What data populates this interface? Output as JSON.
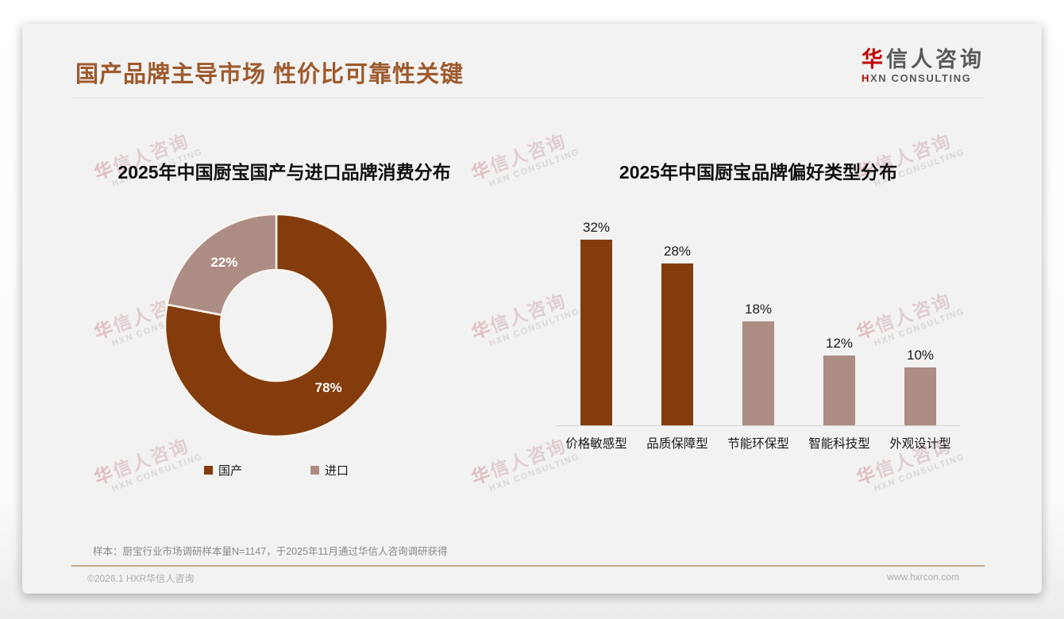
{
  "page": {
    "title": "国产品牌主导市场 性价比可靠性关键",
    "sample_note": "样本：厨宝行业市场调研样本量N=1147，于2025年11月通过华信人咨询调研获得",
    "footer_left": "©2026.1 HXR华信人咨询",
    "footer_right": "www.hxrcon.com"
  },
  "logo": {
    "cn_first": "华",
    "cn_rest": "信人咨询",
    "en_first": "H",
    "en_rest": "XN CONSULTING"
  },
  "watermark": {
    "cn_first": "华",
    "cn_rest": "信人咨询",
    "en": "HXN CONSULTING"
  },
  "colors": {
    "brand_brown": "#843c0c",
    "mauve": "#ad8c84",
    "title_brown": "#9e5a2d",
    "accent_red": "#c00000",
    "card_bg": "#f2f2f2"
  },
  "chart_data": [
    {
      "type": "pie",
      "donut": true,
      "title": "2025年中国厨宝国产与进口品牌消费分布",
      "labels": [
        "国产",
        "进口"
      ],
      "values": [
        78,
        22
      ],
      "value_labels": [
        "78%",
        "22%"
      ],
      "slice_colors": [
        "#843c0c",
        "#ad8c84"
      ],
      "legend_position": "bottom"
    },
    {
      "type": "bar",
      "title": "2025年中国厨宝品牌偏好类型分布",
      "categories": [
        "价格敏感型",
        "品质保障型",
        "节能环保型",
        "智能科技型",
        "外观设计型"
      ],
      "values": [
        32,
        28,
        18,
        12,
        10
      ],
      "value_labels": [
        "32%",
        "28%",
        "18%",
        "12%",
        "10%"
      ],
      "bar_colors": [
        "#843c0c",
        "#843c0c",
        "#ad8c84",
        "#ad8c84",
        "#ad8c84"
      ],
      "ylim": [
        0,
        35
      ],
      "grid": false
    }
  ]
}
